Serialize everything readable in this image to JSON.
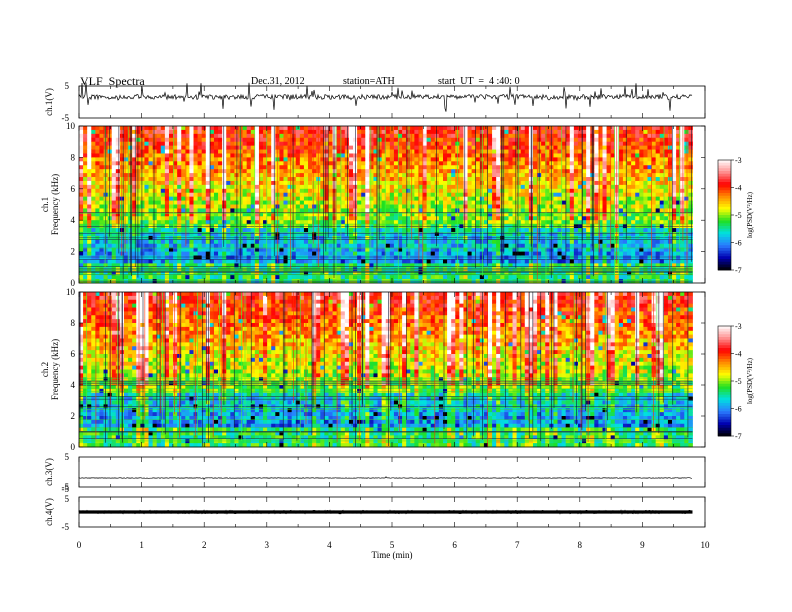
{
  "header": {
    "title": "VLF  Spectra",
    "date": "Dec.31, 2012",
    "station": "station=ATH",
    "start": "start  UT  =  4 :40: 0"
  },
  "chart_data": {
    "type": "heatmap",
    "xlabel": "Time  (min)",
    "xlim": [
      0,
      10
    ],
    "xticks": [
      "0",
      "1",
      "2",
      "3",
      "4",
      "5",
      "6",
      "7",
      "8",
      "9",
      "10"
    ],
    "data_end_min": 9.8,
    "panels": [
      {
        "id": "ch1-wave",
        "kind": "line",
        "ylabel": "ch.1(V)",
        "yticks": [
          "5",
          "-5"
        ],
        "ylim": [
          -5,
          5
        ],
        "baseline": 1.6
      },
      {
        "id": "ch1-spec",
        "kind": "spectrogram",
        "ylabel1": "ch.1",
        "ylabel2": "Frequency  (kHz)",
        "yticks": [
          "10",
          "8",
          "6",
          "4",
          "2",
          "0"
        ],
        "ylim": [
          0,
          10
        ]
      },
      {
        "id": "ch2-spec",
        "kind": "spectrogram",
        "ylabel1": "ch.2",
        "ylabel2": "Frequency  (kHz)",
        "yticks": [
          "10",
          "8",
          "6",
          "4",
          "2",
          "0"
        ],
        "ylim": [
          0,
          10
        ]
      },
      {
        "id": "ch3-wave",
        "kind": "line",
        "ylabel": "ch.3(V)",
        "yticks": [
          "5",
          "-5"
        ],
        "ylim": [
          -5,
          5
        ],
        "baseline": -2
      },
      {
        "id": "ch4-wave",
        "kind": "line",
        "ylabel": "ch.4(V)",
        "yticks": [
          "-5",
          "5",
          "-5"
        ],
        "ylim": [
          -5,
          5
        ],
        "baseline": 0
      }
    ],
    "colorbar": {
      "label": "log(PSD(V²/Hz)",
      "ticks": [
        "-3",
        "-4",
        "-5",
        "-6",
        "-7"
      ],
      "range": [
        -7,
        -3
      ],
      "colors": [
        "#000000",
        "#0000b0",
        "#2a7bff",
        "#00e0e0",
        "#20e020",
        "#ffff00",
        "#ff8c00",
        "#ff0000",
        "#ff9090",
        "#ffffff"
      ]
    }
  }
}
